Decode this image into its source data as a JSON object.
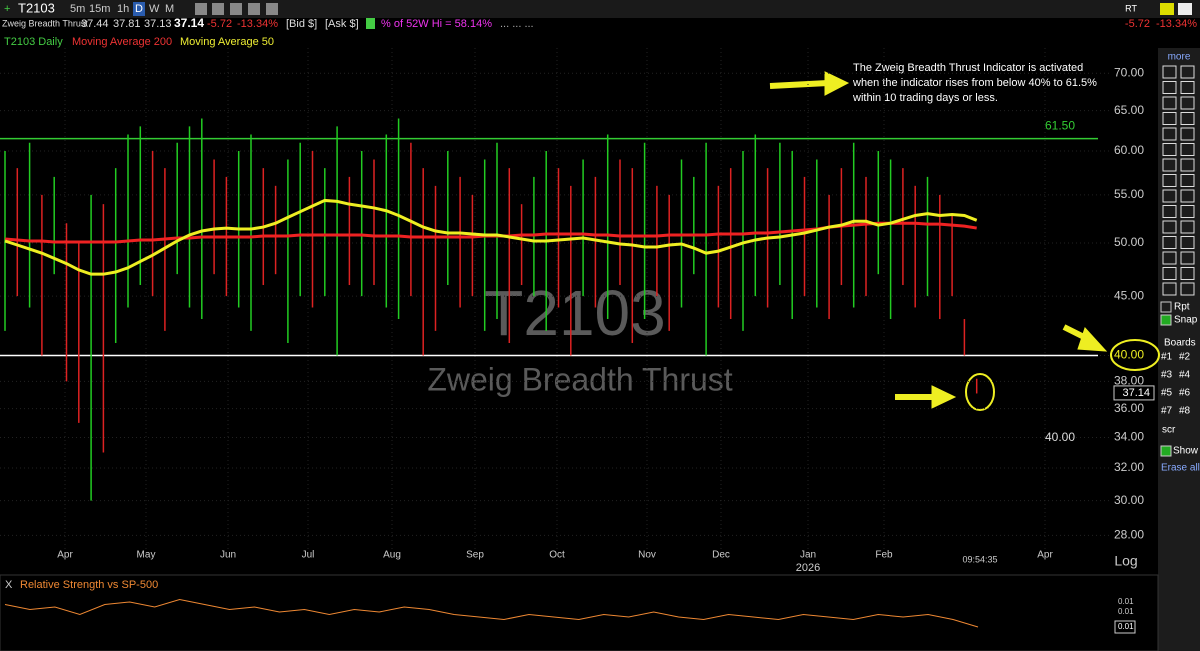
{
  "toolbar": {
    "symbol": "T2103",
    "intervals": [
      "5m",
      "15m",
      "1h",
      "D",
      "W",
      "M"
    ],
    "name": "Zweig Breadth Thrust",
    "open": "37.44",
    "high": "37.81",
    "low": "37.13",
    "last": "37.14",
    "change": "-5.72",
    "change_pct": "-13.34%",
    "bid": "[Bid $]",
    "ask": "[Ask $]",
    "pct_52w": "% of 52W Hi = 58.14%",
    "more": "... ... ...",
    "rt": "RT"
  },
  "legend": [
    "T2103 Daily",
    "Moving Average 200",
    "Moving Average 50"
  ],
  "watermark": {
    "symbol": "T2103",
    "name": "Zweig Breadth Thrust"
  },
  "annotation": [
    "The Zweig Breadth Thrust Indicator is activated",
    "when the indicator rises from below 40% to  61.5%",
    "within 10 trading days or less."
  ],
  "chart": {
    "log": true,
    "scale_label": "Log",
    "time": "09:54:35",
    "year": "2026",
    "ylim": [
      27.2,
      73.6
    ],
    "yticks": [
      {
        "value": 70,
        "label": "70.00"
      },
      {
        "value": 65,
        "label": "65.00"
      },
      {
        "value": 60,
        "label": "60.00"
      },
      {
        "value": 55,
        "label": "55.00"
      },
      {
        "value": 50,
        "label": "50.00"
      },
      {
        "value": 45,
        "label": "45.00"
      },
      {
        "value": 40,
        "label": "40.00"
      },
      {
        "value": 38,
        "label": "38.00"
      },
      {
        "value": 36,
        "label": "36.00"
      },
      {
        "value": 34,
        "label": "34.00"
      },
      {
        "value": 32,
        "label": "32.00"
      },
      {
        "value": 30,
        "label": "30.00"
      },
      {
        "value": 28,
        "label": "28.00"
      }
    ],
    "months": [
      "Apr",
      "May",
      "Jun",
      "Jul",
      "Aug",
      "Sep",
      "Oct",
      "Nov",
      "Dec",
      "Jan",
      "Feb",
      "Apr"
    ],
    "levels": [
      {
        "value": 61.5,
        "label": "61.50",
        "color": "#3c3"
      },
      {
        "value": 40,
        "label": "40.00",
        "color": "#ffffff"
      }
    ],
    "bars": {
      "up_color": "#2c2",
      "down_color": "#d22",
      "high": [
        60,
        58,
        61,
        55,
        57,
        52,
        50,
        55,
        54,
        58,
        62,
        63,
        60,
        58,
        61,
        63,
        64,
        59,
        57,
        60,
        62,
        58,
        56,
        59,
        61,
        60,
        58,
        63,
        57,
        60,
        59,
        62,
        64,
        61,
        58,
        56,
        60,
        57,
        55,
        59,
        61,
        58,
        54,
        57,
        60,
        58,
        56,
        59,
        57,
        62,
        59,
        58,
        61,
        56,
        55,
        59,
        57,
        61,
        56,
        58,
        60,
        62,
        58,
        61,
        60,
        57,
        59,
        55,
        58,
        61,
        57,
        60,
        59,
        58,
        56,
        57,
        55,
        53,
        43,
        38.2
      ],
      "low": [
        42,
        45,
        44,
        40,
        47,
        38,
        35,
        30,
        33,
        41,
        44,
        46,
        45,
        42,
        47,
        44,
        43,
        47,
        45,
        44,
        42,
        46,
        47,
        41,
        45,
        44,
        45,
        40,
        46,
        45,
        46,
        44,
        43,
        45,
        40,
        42,
        46,
        44,
        45,
        42,
        43,
        41,
        46,
        45,
        42,
        44,
        40,
        45,
        44,
        43,
        46,
        41,
        43,
        45,
        42,
        44,
        47,
        40,
        44,
        43,
        42,
        45,
        44,
        46,
        43,
        45,
        44,
        43,
        46,
        44,
        45,
        47,
        43,
        46,
        44,
        45,
        43,
        45,
        40,
        37.1
      ],
      "up": [
        true,
        false,
        true,
        false,
        true,
        false,
        false,
        true,
        false,
        true,
        true,
        true,
        false,
        false,
        true,
        true,
        true,
        false,
        false,
        true,
        true,
        false,
        false,
        true,
        true,
        false,
        true,
        true,
        false,
        true,
        false,
        true,
        true,
        false,
        false,
        false,
        true,
        false,
        false,
        true,
        true,
        false,
        false,
        true,
        true,
        false,
        false,
        true,
        false,
        true,
        false,
        false,
        true,
        false,
        false,
        true,
        true,
        true,
        false,
        false,
        true,
        true,
        false,
        true,
        true,
        false,
        true,
        false,
        false,
        true,
        false,
        true,
        true,
        false,
        false,
        true,
        false,
        false,
        false,
        false
      ]
    },
    "ma200": {
      "color": "#e22",
      "values": [
        50.4,
        50.3,
        50.2,
        50.2,
        50.1,
        50.1,
        50.1,
        50.1,
        50.1,
        50.1,
        50.2,
        50.3,
        50.3,
        50.4,
        50.5,
        50.5,
        50.6,
        50.6,
        50.6,
        50.6,
        50.6,
        50.7,
        50.7,
        50.7,
        50.8,
        50.8,
        50.8,
        50.8,
        50.8,
        50.8,
        50.7,
        50.7,
        50.7,
        50.6,
        50.6,
        50.6,
        50.6,
        50.6,
        50.6,
        50.7,
        50.7,
        50.7,
        50.8,
        50.8,
        50.9,
        50.9,
        50.9,
        50.9,
        50.8,
        50.8,
        50.7,
        50.7,
        50.7,
        50.7,
        50.8,
        50.8,
        50.8,
        50.8,
        50.9,
        50.9,
        50.9,
        51,
        51,
        51.1,
        51.2,
        51.3,
        51.4,
        51.6,
        51.7,
        51.8,
        51.9,
        52,
        52,
        52,
        52,
        51.9,
        51.9,
        51.8,
        51.7,
        51.5
      ]
    },
    "ma50": {
      "color": "#ee2",
      "values": [
        50.2,
        49.8,
        49.4,
        49,
        48.5,
        48,
        47.4,
        47,
        47,
        47.2,
        47.6,
        48.2,
        48.8,
        49.5,
        50.2,
        50.8,
        51.2,
        51.4,
        51.5,
        51.4,
        51.4,
        51.6,
        52,
        52.6,
        53.2,
        53.8,
        54.4,
        54.3,
        54,
        53.8,
        53.6,
        53.3,
        52.8,
        52.2,
        51.6,
        51.2,
        51,
        51,
        50.9,
        50.8,
        50.8,
        50.6,
        50.4,
        50.2,
        50.2,
        50.3,
        50.4,
        50.5,
        50.3,
        50.1,
        49.9,
        49.8,
        49.6,
        49.6,
        49.8,
        49.9,
        49.5,
        49,
        49.2,
        49.6,
        50,
        50.3,
        50.5,
        50.6,
        50.8,
        51,
        51.3,
        51.6,
        51.8,
        52.2,
        52.2,
        51.8,
        52,
        52.4,
        52.8,
        53,
        52.8,
        52.9,
        52.8,
        52.3
      ]
    }
  },
  "rs_panel": {
    "close": "X",
    "title": "Relative Strength vs SP-500",
    "color": "#e83",
    "ylim": [
      0.0088,
      0.0108
    ],
    "yticks": [
      {
        "value": 0.0104,
        "label": "0.01"
      },
      {
        "value": 0.01,
        "label": "0.01"
      }
    ],
    "last": {
      "value": 0.0094,
      "label": "0.01"
    },
    "values": [
      0.0103,
      0.0101,
      0.0102,
      0.0099,
      0.0103,
      0.0104,
      0.0102,
      0.0105,
      0.0103,
      0.0101,
      0.0102,
      0.01,
      0.0101,
      0.0099,
      0.0101,
      0.01,
      0.0102,
      0.0101,
      0.0099,
      0.0098,
      0.0097,
      0.0099,
      0.0098,
      0.0097,
      0.0099,
      0.0098,
      0.01,
      0.0098,
      0.0097,
      0.0099,
      0.0098,
      0.0097,
      0.0099,
      0.0098,
      0.0097,
      0.0099,
      0.0098,
      0.0099,
      0.0097,
      0.0094
    ]
  },
  "side_panel": {
    "more": "more",
    "rpt": "Rpt",
    "snap": "Snap",
    "boards": "Boards",
    "board_names": [
      "#1",
      "#2",
      "#3",
      "#4",
      "#5",
      "#6",
      "#7",
      "#8"
    ],
    "scr": "scr",
    "show": "Show",
    "erase": "Erase all"
  }
}
